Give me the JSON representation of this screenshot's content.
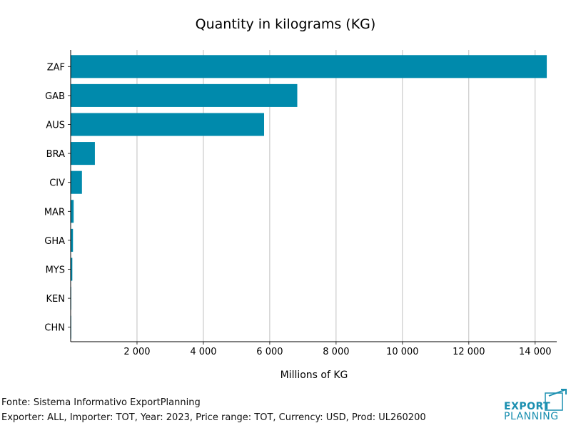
{
  "chart_data": {
    "type": "bar",
    "orientation": "horizontal",
    "title": "Quantity in kilograms (KG)",
    "xlabel": "Millions of KG",
    "ylabel": "",
    "categories": [
      "ZAF",
      "GAB",
      "AUS",
      "BRA",
      "CIV",
      "MAR",
      "GHA",
      "MYS",
      "KEN",
      "CHN"
    ],
    "values": [
      14350,
      6830,
      5830,
      730,
      340,
      90,
      70,
      50,
      10,
      5
    ],
    "xlim": [
      0,
      14650
    ],
    "xticks": [
      2000,
      4000,
      6000,
      8000,
      10000,
      12000,
      14000
    ],
    "xtick_labels": [
      "2 000",
      "4 000",
      "6 000",
      "8 000",
      "10 000",
      "12 000",
      "14 000"
    ],
    "grid": "vertical",
    "bar_color": "#008aac"
  },
  "footer": {
    "source": "Fonte: Sistema Informativo ExportPlanning",
    "meta": "Exporter: ALL, Importer: TOT, Year: 2023, Price range: TOT, Currency: USD, Prod: UL260200"
  },
  "logo": {
    "line1": "EXPORT",
    "line2": "PLANNING",
    "color": "#1a8fb0"
  }
}
